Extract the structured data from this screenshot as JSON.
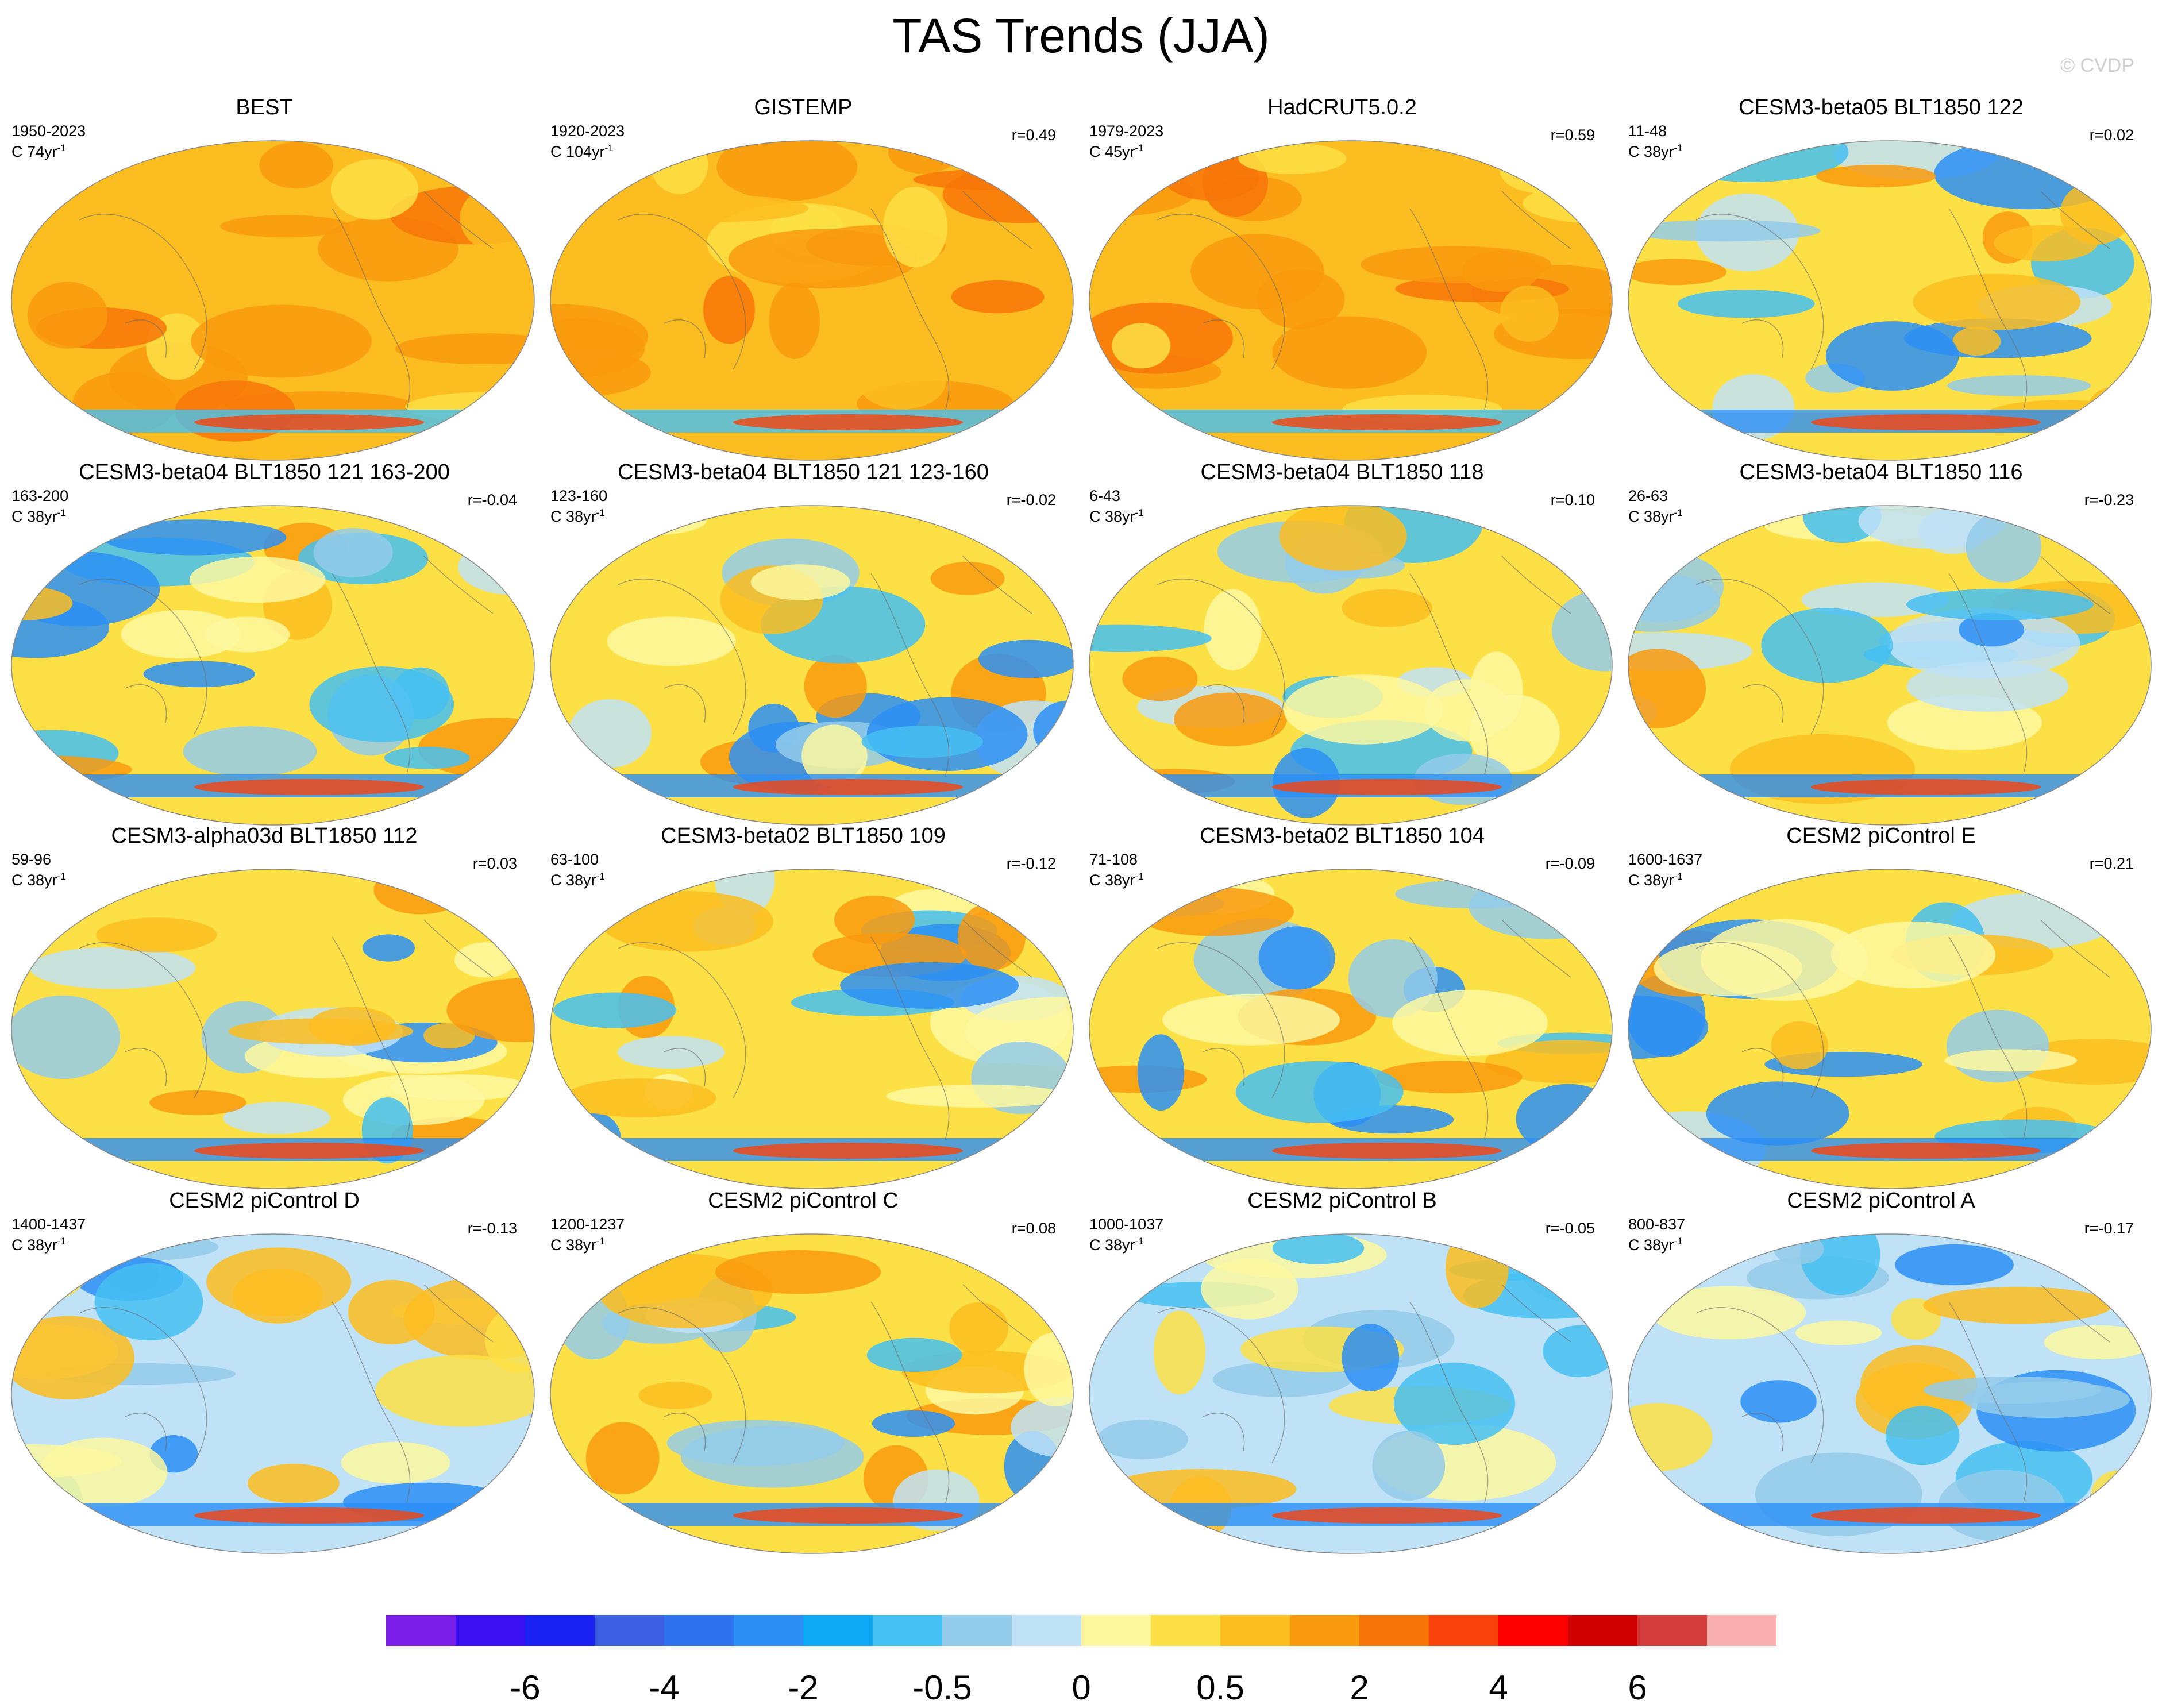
{
  "title": "TAS Trends (JJA)",
  "watermark": "© CVDP",
  "panels": [
    {
      "title": "BEST",
      "years": "1950-2023",
      "length": "C 74yr",
      "r": "",
      "base": "warm"
    },
    {
      "title": "GISTEMP",
      "years": "1920-2023",
      "length": "C 104yr",
      "r": "r=0.49",
      "base": "warm"
    },
    {
      "title": "HadCRUT5.0.2",
      "years": "1979-2023",
      "length": "C 45yr",
      "r": "r=0.59",
      "base": "warm"
    },
    {
      "title": "CESM3-beta05 BLT1850 122",
      "years": "11-48",
      "length": "C 38yr",
      "r": "r=0.02",
      "base": "mixed"
    },
    {
      "title": "CESM3-beta04 BLT1850 121 163-200",
      "years": "163-200",
      "length": "C 38yr",
      "r": "r=-0.04",
      "base": "mixed"
    },
    {
      "title": "CESM3-beta04 BLT1850 121 123-160",
      "years": "123-160",
      "length": "C 38yr",
      "r": "r=-0.02",
      "base": "mixed"
    },
    {
      "title": "CESM3-beta04 BLT1850 118",
      "years": "6-43",
      "length": "C 38yr",
      "r": "r=0.10",
      "base": "mixed"
    },
    {
      "title": "CESM3-beta04 BLT1850 116",
      "years": "26-63",
      "length": "C 38yr",
      "r": "r=-0.23",
      "base": "mixed"
    },
    {
      "title": "CESM3-alpha03d BLT1850 112",
      "years": "59-96",
      "length": "C 38yr",
      "r": "r=0.03",
      "base": "mixed"
    },
    {
      "title": "CESM3-beta02 BLT1850 109",
      "years": "63-100",
      "length": "C 38yr",
      "r": "r=-0.12",
      "base": "mixed"
    },
    {
      "title": "CESM3-beta02 BLT1850 104",
      "years": "71-108",
      "length": "C 38yr",
      "r": "r=-0.09",
      "base": "mixed"
    },
    {
      "title": "CESM2 piControl E",
      "years": "1600-1637",
      "length": "C 38yr",
      "r": "r=0.21",
      "base": "mixed"
    },
    {
      "title": "CESM2 piControl D",
      "years": "1400-1437",
      "length": "C 38yr",
      "r": "r=-0.13",
      "base": "cool"
    },
    {
      "title": "CESM2 piControl C",
      "years": "1200-1237",
      "length": "C 38yr",
      "r": "r=0.08",
      "base": "mixed"
    },
    {
      "title": "CESM2 piControl B",
      "years": "1000-1037",
      "length": "C 38yr",
      "r": "r=-0.05",
      "base": "cool"
    },
    {
      "title": "CESM2 piControl A",
      "years": "800-837",
      "length": "C 38yr",
      "r": "r=-0.17",
      "base": "cool"
    }
  ],
  "unit_sup": "-1",
  "colorbar": {
    "colors": [
      "#7b1fe8",
      "#3a10f0",
      "#1a22f2",
      "#3b5fe0",
      "#2e72ee",
      "#2b8ff5",
      "#0fa8f5",
      "#45c0f2",
      "#93cbea",
      "#bfe2f7",
      "#fdf8a0",
      "#fde045",
      "#fbbd20",
      "#f99a0e",
      "#f77508",
      "#f7420c",
      "#ff0000",
      "#cf0000",
      "#d43b3b",
      "#fab0b0"
    ],
    "labels": [
      {
        "text": "-6",
        "boundary": 2
      },
      {
        "text": "-4",
        "boundary": 4
      },
      {
        "text": "-2",
        "boundary": 6
      },
      {
        "text": "-0.5",
        "boundary": 8
      },
      {
        "text": "0",
        "boundary": 10
      },
      {
        "text": "0.5",
        "boundary": 12
      },
      {
        "text": "2",
        "boundary": 14
      },
      {
        "text": "4",
        "boundary": 16
      },
      {
        "text": "6",
        "boundary": 18
      }
    ]
  }
}
